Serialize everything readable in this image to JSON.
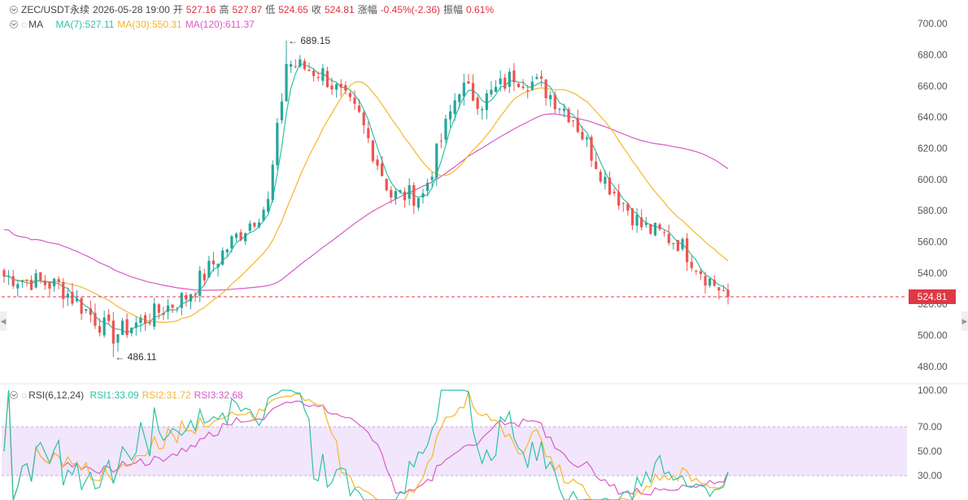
{
  "header": {
    "symbol": "ZEC/USDT永续",
    "datetime": "2026-05-28 19:00",
    "open_label": "开",
    "open": "527.16",
    "high_label": "高",
    "high": "527.87",
    "low_label": "低",
    "low": "524.65",
    "close_label": "收",
    "close": "524.81",
    "change_label": "涨幅",
    "change": "-0.45%(-2.36)",
    "amplitude_label": "振幅",
    "amplitude": "0.61%"
  },
  "ma_legend": {
    "label": "MA",
    "ma7": "MA(7):527.11",
    "ma30": "MA(30):550.31",
    "ma120": "MA(120):611.37"
  },
  "rsi_legend": {
    "label": "RSI(6,12,24)",
    "rsi1": "RSI1:33.09",
    "rsi2": "RSI2:31.72",
    "rsi3": "RSI3:32.68"
  },
  "current_price_tag": "524.81",
  "colors": {
    "up": "#26a69a",
    "down": "#ef5350",
    "ma7": "#2bc3a6",
    "ma30": "#f5b62d",
    "ma120": "#d85bc8",
    "rsi1": "#2bc3a6",
    "rsi2": "#f5b62d",
    "rsi3": "#d85bc8",
    "band": "#f1e6fb",
    "price_line": "#e03845"
  },
  "chart_data": [
    {
      "type": "candlestick",
      "title": "ZEC/USDT永续",
      "ylim": [
        470,
        710
      ],
      "yticks": [
        "700.00",
        "680.00",
        "660.00",
        "640.00",
        "620.00",
        "600.00",
        "580.00",
        "560.00",
        "540.00",
        "520.00",
        "500.00",
        "480.00"
      ],
      "current_price": 524.81,
      "annotations": [
        {
          "label": "689.15",
          "value": 689.15,
          "bar_index": 62
        },
        {
          "label": "486.11",
          "value": 486.11,
          "bar_index": 24
        }
      ],
      "trend_keypoints": [
        [
          0,
          538
        ],
        [
          12,
          532
        ],
        [
          24,
          500
        ],
        [
          32,
          512
        ],
        [
          40,
          525
        ],
        [
          50,
          560
        ],
        [
          58,
          585
        ],
        [
          62,
          675
        ],
        [
          70,
          668
        ],
        [
          78,
          640
        ],
        [
          85,
          590
        ],
        [
          92,
          590
        ],
        [
          100,
          660
        ],
        [
          105,
          650
        ],
        [
          112,
          667
        ],
        [
          118,
          660
        ],
        [
          125,
          640
        ],
        [
          132,
          600
        ],
        [
          140,
          570
        ],
        [
          148,
          560
        ],
        [
          155,
          535
        ],
        [
          159,
          526
        ]
      ],
      "ma_series": [
        {
          "name": "MA(7)",
          "value": 527.11
        },
        {
          "name": "MA(30)",
          "value": 550.31
        },
        {
          "name": "MA(120)",
          "value": 611.37
        }
      ]
    },
    {
      "type": "line",
      "title": "RSI(6,12,24)",
      "ylim": [
        10,
        100
      ],
      "yticks": [
        "100.00",
        "70.00",
        "50.00",
        "30.00"
      ],
      "band": [
        30,
        70
      ],
      "series": [
        {
          "name": "RSI1",
          "value": 33.09
        },
        {
          "name": "RSI2",
          "value": 31.72
        },
        {
          "name": "RSI3",
          "value": 32.68
        }
      ]
    }
  ]
}
